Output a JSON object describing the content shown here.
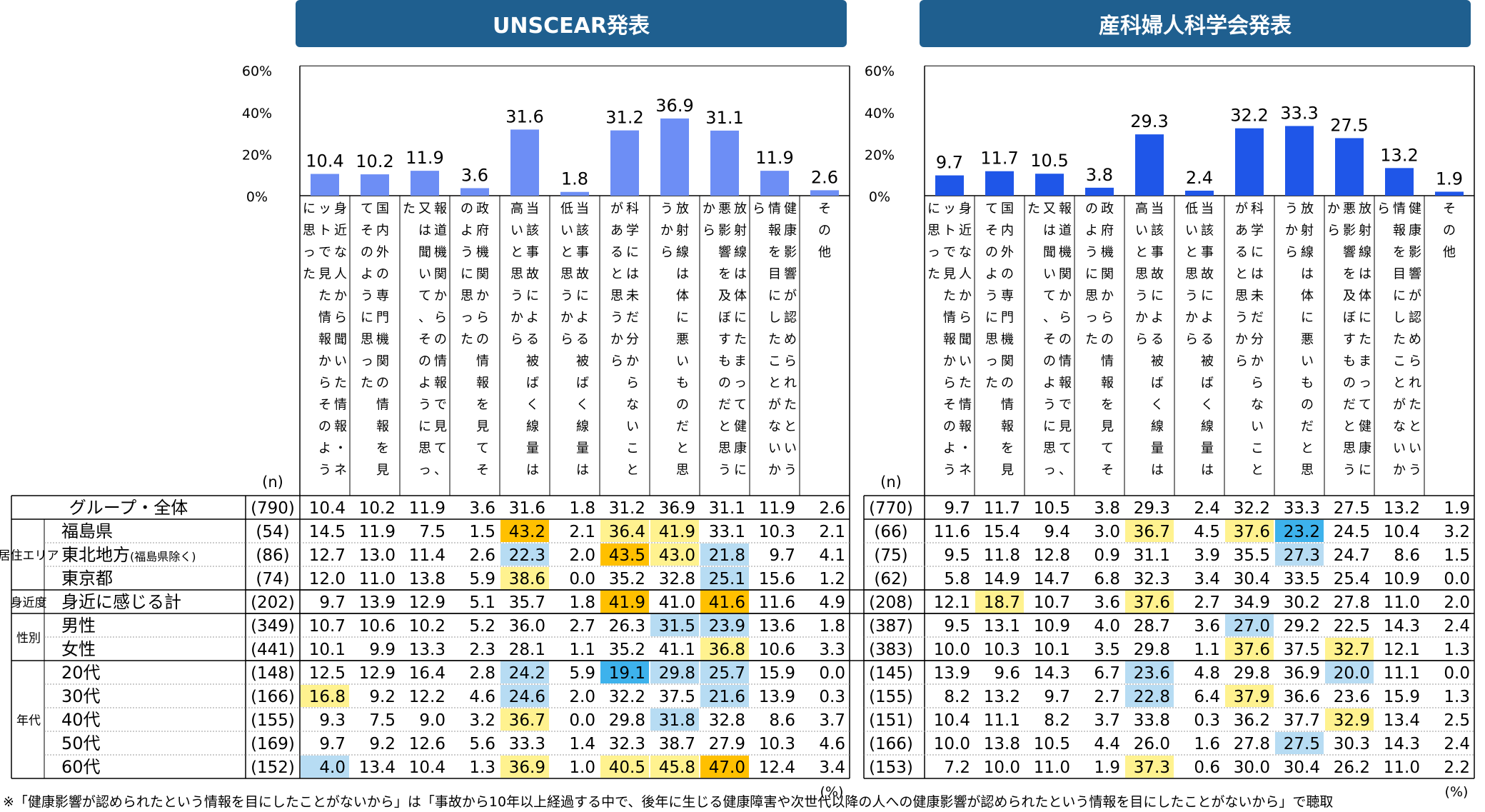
{
  "titles": {
    "left": "UNSCEAR発表",
    "right": "産科婦人科学会発表"
  },
  "axis": {
    "ticks": [
      "60%",
      "40%",
      "20%",
      "0%"
    ],
    "n_label": "(n)",
    "unit_label": "(%)"
  },
  "categories": [
    "身近な人から聞いた情報・ネットで見た情報からそのように思った",
    "国内外の専門機関の情報を見てそのように思った",
    "報道機関からの情報で見て、又は聞いて、そのように思った",
    "政府機関からの情報を見てそのように思った",
    "当該事故による被ばく線量は高いと思うから",
    "当該事故による被ばく線量は低いと思うから",
    "科学には未だ分からないことがあると思うから",
    "放射線は体に悪いものだと思うから",
    "放射線は体にたまって健康に悪影響を及ぼすものだと思うから",
    "健康影響が認められたという情報を目にしたことがないから",
    "その他"
  ],
  "row_groups": [
    {
      "label": "居住エリア",
      "rows": [
        "福島県",
        "東北地方(福島県除く)",
        "東京都"
      ]
    },
    {
      "label": "身近度",
      "rows": [
        "身近に感じる計"
      ]
    },
    {
      "label": "性別",
      "rows": [
        "男性",
        "女性"
      ]
    },
    {
      "label": "年代",
      "rows": [
        "20代",
        "30代",
        "40代",
        "50代",
        "60代"
      ]
    }
  ],
  "colors": {
    "bar_left": "#6d8ef5",
    "bar_right": "#1f56e8",
    "banner": "#1f5f8f",
    "yellow": "#fff28f",
    "orange": "#ffc000",
    "lightblue": "#b7dcf3",
    "blue": "#3db2ec"
  },
  "footnote": "※「健康影響が認められたという情報を目にしたことがないから」は「事故から10年以上経過する中で、後年に生じる健康障害や次世代以降の人への健康影響が認められたという情報を目にしたことがないから」で聴取",
  "chart_data": [
    {
      "type": "bar",
      "title": "UNSCEAR発表",
      "ylim": [
        0,
        60
      ],
      "values": [
        10.4,
        10.2,
        11.9,
        3.6,
        31.6,
        1.8,
        31.2,
        36.9,
        31.1,
        11.9,
        2.6
      ],
      "table": {
        "rows": [
          {
            "label": "グループ・全体",
            "n": "(790)",
            "values": [
              "10.4",
              "10.2",
              "11.9",
              "3.6",
              "31.6",
              "1.8",
              "31.2",
              "36.9",
              "31.1",
              "11.9",
              "2.6"
            ],
            "hl": {}
          },
          {
            "label": "福島県",
            "n": "(54)",
            "values": [
              "14.5",
              "11.9",
              "7.5",
              "1.5",
              "43.2",
              "2.1",
              "36.4",
              "41.9",
              "33.1",
              "10.3",
              "2.1"
            ],
            "hl": {
              "4": "orange",
              "6": "yellow",
              "7": "yellow"
            }
          },
          {
            "label": "東北地方",
            "label_small": "(福島県除く)",
            "n": "(86)",
            "values": [
              "12.7",
              "13.0",
              "11.4",
              "2.6",
              "22.3",
              "2.0",
              "43.5",
              "43.0",
              "21.8",
              "9.7",
              "4.1"
            ],
            "hl": {
              "4": "lightblue",
              "6": "orange",
              "7": "yellow",
              "8": "lightblue"
            }
          },
          {
            "label": "東京都",
            "n": "(74)",
            "values": [
              "12.0",
              "11.0",
              "13.8",
              "5.9",
              "38.6",
              "0.0",
              "35.2",
              "32.8",
              "25.1",
              "15.6",
              "1.2"
            ],
            "hl": {
              "4": "yellow",
              "8": "lightblue"
            }
          },
          {
            "label": "身近に感じる計",
            "n": "(202)",
            "values": [
              "9.7",
              "13.9",
              "12.9",
              "5.1",
              "35.7",
              "1.8",
              "41.9",
              "41.0",
              "41.6",
              "11.6",
              "4.9"
            ],
            "hl": {
              "6": "orange",
              "8": "orange"
            }
          },
          {
            "label": "男性",
            "n": "(349)",
            "values": [
              "10.7",
              "10.6",
              "10.2",
              "5.2",
              "36.0",
              "2.7",
              "26.3",
              "31.5",
              "23.9",
              "13.6",
              "1.8"
            ],
            "hl": {
              "7": "lightblue",
              "8": "lightblue"
            }
          },
          {
            "label": "女性",
            "n": "(441)",
            "values": [
              "10.1",
              "9.9",
              "13.3",
              "2.3",
              "28.1",
              "1.1",
              "35.2",
              "41.1",
              "36.8",
              "10.6",
              "3.3"
            ],
            "hl": {
              "8": "yellow"
            }
          },
          {
            "label": "20代",
            "n": "(148)",
            "values": [
              "12.5",
              "12.9",
              "16.4",
              "2.8",
              "24.2",
              "5.9",
              "19.1",
              "29.8",
              "25.7",
              "15.9",
              "0.0"
            ],
            "hl": {
              "4": "lightblue",
              "6": "blue",
              "7": "lightblue",
              "8": "lightblue"
            }
          },
          {
            "label": "30代",
            "n": "(166)",
            "values": [
              "16.8",
              "9.2",
              "12.2",
              "4.6",
              "24.6",
              "2.0",
              "32.2",
              "37.5",
              "21.6",
              "13.9",
              "0.3"
            ],
            "hl": {
              "0": "yellow",
              "4": "lightblue",
              "8": "lightblue"
            }
          },
          {
            "label": "40代",
            "n": "(155)",
            "values": [
              "9.3",
              "7.5",
              "9.0",
              "3.2",
              "36.7",
              "0.0",
              "29.8",
              "31.8",
              "32.8",
              "8.6",
              "3.7"
            ],
            "hl": {
              "4": "yellow",
              "7": "lightblue"
            }
          },
          {
            "label": "50代",
            "n": "(169)",
            "values": [
              "9.7",
              "9.2",
              "12.6",
              "5.6",
              "33.3",
              "1.4",
              "32.3",
              "38.7",
              "27.9",
              "10.3",
              "4.6"
            ],
            "hl": {}
          },
          {
            "label": "60代",
            "n": "(152)",
            "values": [
              "4.0",
              "13.4",
              "10.4",
              "1.3",
              "36.9",
              "1.0",
              "40.5",
              "45.8",
              "47.0",
              "12.4",
              "3.4"
            ],
            "hl": {
              "0": "lightblue",
              "4": "yellow",
              "6": "yellow",
              "7": "yellow",
              "8": "orange"
            }
          }
        ]
      }
    },
    {
      "type": "bar",
      "title": "産科婦人科学会発表",
      "ylim": [
        0,
        60
      ],
      "values": [
        9.7,
        11.7,
        10.5,
        3.8,
        29.3,
        2.4,
        32.2,
        33.3,
        27.5,
        13.2,
        1.9
      ],
      "table": {
        "rows": [
          {
            "n": "(770)",
            "values": [
              "9.7",
              "11.7",
              "10.5",
              "3.8",
              "29.3",
              "2.4",
              "32.2",
              "33.3",
              "27.5",
              "13.2",
              "1.9"
            ],
            "hl": {}
          },
          {
            "n": "(66)",
            "values": [
              "11.6",
              "15.4",
              "9.4",
              "3.0",
              "36.7",
              "4.5",
              "37.6",
              "23.2",
              "24.5",
              "10.4",
              "3.2"
            ],
            "hl": {
              "4": "yellow",
              "6": "yellow",
              "7": "blue"
            }
          },
          {
            "n": "(75)",
            "values": [
              "9.5",
              "11.8",
              "12.8",
              "0.9",
              "31.1",
              "3.9",
              "35.5",
              "27.3",
              "24.7",
              "8.6",
              "1.5"
            ],
            "hl": {
              "7": "lightblue"
            }
          },
          {
            "n": "(62)",
            "values": [
              "5.8",
              "14.9",
              "14.7",
              "6.8",
              "32.3",
              "3.4",
              "30.4",
              "33.5",
              "25.4",
              "10.9",
              "0.0"
            ],
            "hl": {}
          },
          {
            "n": "(208)",
            "values": [
              "12.1",
              "18.7",
              "10.7",
              "3.6",
              "37.6",
              "2.7",
              "34.9",
              "30.2",
              "27.8",
              "11.0",
              "2.0"
            ],
            "hl": {
              "1": "yellow",
              "4": "yellow"
            }
          },
          {
            "n": "(387)",
            "values": [
              "9.5",
              "13.1",
              "10.9",
              "4.0",
              "28.7",
              "3.6",
              "27.0",
              "29.2",
              "22.5",
              "14.3",
              "2.4"
            ],
            "hl": {
              "6": "lightblue"
            }
          },
          {
            "n": "(383)",
            "values": [
              "10.0",
              "10.3",
              "10.1",
              "3.5",
              "29.8",
              "1.1",
              "37.6",
              "37.5",
              "32.7",
              "12.1",
              "1.3"
            ],
            "hl": {
              "6": "yellow",
              "8": "yellow"
            }
          },
          {
            "n": "(145)",
            "values": [
              "13.9",
              "9.6",
              "14.3",
              "6.7",
              "23.6",
              "4.8",
              "29.8",
              "36.9",
              "20.0",
              "11.1",
              "0.0"
            ],
            "hl": {
              "4": "lightblue",
              "8": "lightblue"
            }
          },
          {
            "n": "(155)",
            "values": [
              "8.2",
              "13.2",
              "9.7",
              "2.7",
              "22.8",
              "6.4",
              "37.9",
              "36.6",
              "23.6",
              "15.9",
              "1.3"
            ],
            "hl": {
              "4": "lightblue",
              "6": "yellow"
            }
          },
          {
            "n": "(151)",
            "values": [
              "10.4",
              "11.1",
              "8.2",
              "3.7",
              "33.8",
              "0.3",
              "36.2",
              "37.7",
              "32.9",
              "13.4",
              "2.5"
            ],
            "hl": {
              "8": "yellow"
            }
          },
          {
            "n": "(166)",
            "values": [
              "10.0",
              "13.8",
              "10.5",
              "4.4",
              "26.0",
              "1.6",
              "27.8",
              "27.5",
              "30.3",
              "14.3",
              "2.4"
            ],
            "hl": {
              "7": "lightblue"
            }
          },
          {
            "n": "(153)",
            "values": [
              "7.2",
              "10.0",
              "11.0",
              "1.9",
              "37.3",
              "0.6",
              "30.0",
              "30.4",
              "26.2",
              "11.0",
              "2.2"
            ],
            "hl": {
              "4": "yellow"
            }
          }
        ]
      }
    }
  ]
}
